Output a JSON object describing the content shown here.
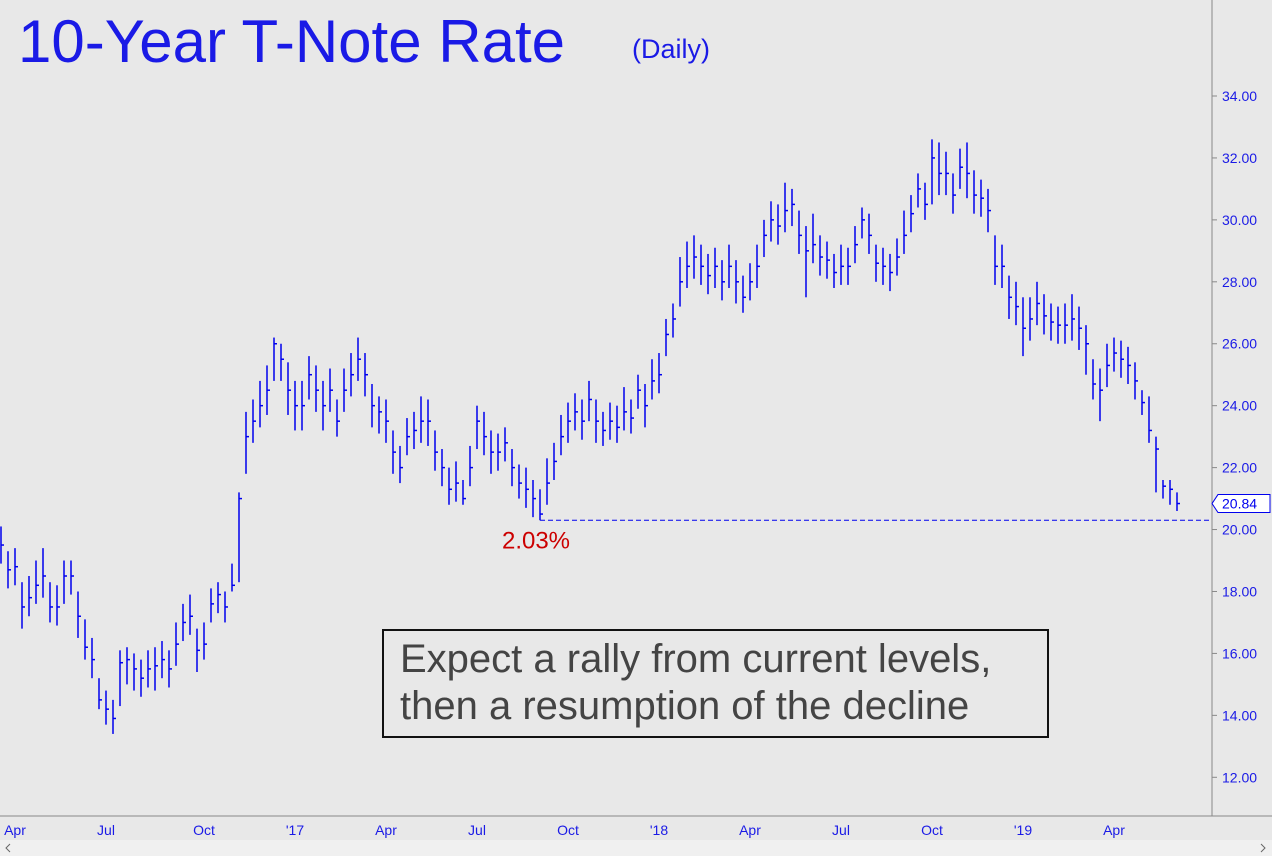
{
  "chart_data": {
    "type": "ohlc",
    "title": "10-Year T-Note Rate",
    "subtitle": "(Daily)",
    "color": "#0000ee",
    "categories": [
      null,
      null,
      "Apr",
      null,
      null,
      null,
      null,
      null,
      null,
      null,
      null,
      null,
      null,
      null,
      null,
      "Jul",
      null,
      null,
      null,
      null,
      null,
      null,
      null,
      null,
      null,
      null,
      null,
      null,
      null,
      "Oct",
      null,
      null,
      null,
      null,
      null,
      null,
      null,
      null,
      null,
      null,
      null,
      null,
      "'17",
      null,
      null,
      null,
      null,
      null,
      null,
      null,
      null,
      null,
      null,
      null,
      null,
      "Apr",
      null,
      null,
      null,
      null,
      null,
      null,
      null,
      null,
      null,
      null,
      null,
      null,
      "Jul",
      null,
      null,
      null,
      null,
      null,
      null,
      null,
      null,
      null,
      null,
      null,
      null,
      "Oct",
      null,
      null,
      null,
      null,
      null,
      null,
      null,
      null,
      null,
      null,
      null,
      null,
      "'18",
      null,
      null,
      null,
      null,
      null,
      null,
      null,
      null,
      null,
      null,
      null,
      null,
      "Apr",
      null,
      null,
      null,
      null,
      null,
      null,
      null,
      null,
      null,
      null,
      null,
      null,
      "Jul",
      null,
      null,
      null,
      null,
      null,
      null,
      null,
      null,
      null,
      null,
      null,
      null,
      "Oct",
      null,
      null,
      null,
      null,
      null,
      null,
      null,
      null,
      null,
      null,
      null,
      null,
      "'19",
      null,
      null,
      null,
      null,
      null,
      null,
      null,
      null,
      null,
      null,
      null,
      null,
      "Apr",
      null,
      null,
      null,
      null,
      null,
      null,
      null,
      null,
      null
    ],
    "high": [
      20.1,
      19.3,
      19.4,
      18.3,
      18.5,
      19,
      19.4,
      18.3,
      18.2,
      19,
      19,
      18,
      17.1,
      16.5,
      15.2,
      14.8,
      14.5,
      16.1,
      16.2,
      16,
      15.8,
      16.1,
      16.2,
      16.4,
      16.1,
      17,
      17.6,
      17.9,
      16.8,
      17,
      18.1,
      18.3,
      18,
      18.9,
      21.2,
      23.8,
      24.2,
      24.8,
      25.3,
      26.2,
      26,
      25.4,
      24.8,
      24.8,
      25.6,
      25.3,
      24.8,
      25.2,
      24.2,
      25.2,
      25.7,
      26.2,
      25.7,
      24.7,
      24.3,
      24.2,
      23.2,
      22.7,
      23.6,
      23.8,
      24.3,
      24.2,
      23.2,
      22.6,
      22,
      22.2,
      21.6,
      22.7,
      24,
      23.8,
      23.2,
      23.1,
      23.3,
      22.6,
      22.1,
      22,
      21.6,
      21.3,
      22.3,
      22.8,
      23.7,
      24.1,
      24.4,
      24.2,
      24.8,
      24.2,
      23.8,
      24.1,
      24,
      24.6,
      24.2,
      25,
      24.7,
      25.5,
      25.7,
      26.8,
      27.3,
      28.8,
      29.3,
      29.5,
      29.2,
      28.9,
      29.1,
      28.7,
      29.2,
      28.7,
      28.2,
      28.6,
      29.2,
      30,
      30.6,
      30.5,
      31.2,
      31,
      30.3,
      29.8,
      30.2,
      29.5,
      29.3,
      28.9,
      29.2,
      29.1,
      29.8,
      30.4,
      30.2,
      29.2,
      29.1,
      28.9,
      29.4,
      30.3,
      30.8,
      31.5,
      31.2,
      32.6,
      32.5,
      32.2,
      31.5,
      32.3,
      32.5,
      31.6,
      31.3,
      31,
      29.5,
      29.2,
      28.2,
      28,
      27.5,
      27.5,
      28,
      27.6,
      27.3,
      27.2,
      27.3,
      27.6,
      27.2,
      26.6,
      25.5,
      25.2,
      26,
      26.2,
      26.1,
      25.9,
      25.4,
      24.5,
      24.3,
      23,
      21.6,
      21.6,
      21.2
    ],
    "low": [
      18.9,
      18.1,
      18.2,
      16.8,
      17.2,
      17.6,
      17.8,
      17,
      16.9,
      17.6,
      17.9,
      16.5,
      15.8,
      15.2,
      14.2,
      13.7,
      13.4,
      14.3,
      15,
      14.8,
      14.6,
      14.9,
      14.8,
      15.2,
      14.9,
      15.6,
      16.4,
      16.6,
      15.4,
      15.8,
      17,
      17.3,
      17,
      18,
      18.3,
      21.8,
      22.8,
      23.3,
      23.7,
      24.8,
      24.8,
      23.7,
      23.2,
      23.2,
      24.2,
      23.8,
      23.2,
      23.8,
      23,
      23.8,
      24.3,
      24.8,
      24.3,
      23.3,
      23.1,
      22.8,
      21.8,
      21.5,
      22.4,
      22.6,
      22.8,
      22.7,
      21.9,
      21.4,
      20.8,
      20.9,
      20.8,
      21.4,
      22.6,
      22.4,
      21.8,
      21.9,
      22.2,
      21.4,
      21,
      20.7,
      20.4,
      20.3,
      20.8,
      21.6,
      22.4,
      22.8,
      23.2,
      22.9,
      23.5,
      22.8,
      22.7,
      22.9,
      22.8,
      23.2,
      23.1,
      23.9,
      23.3,
      24.2,
      24.4,
      25.6,
      26.2,
      27.2,
      27.8,
      28.1,
      27.9,
      27.6,
      27.8,
      27.4,
      27.8,
      27.3,
      27,
      27.4,
      27.8,
      28.8,
      29.3,
      29.2,
      29.6,
      29.8,
      28.9,
      27.5,
      28.6,
      28.2,
      28.1,
      27.8,
      27.9,
      27.9,
      28.6,
      29.4,
      28.9,
      28,
      27.9,
      27.7,
      28.2,
      28.9,
      29.6,
      30.4,
      30,
      30.5,
      30.8,
      30.8,
      30.2,
      31,
      30.7,
      30.2,
      30.1,
      29.6,
      27.9,
      27.8,
      26.8,
      26.6,
      25.6,
      26.1,
      26.6,
      26.3,
      26.1,
      26,
      26,
      26.1,
      25.8,
      25,
      24.2,
      23.5,
      24.6,
      25.1,
      24.9,
      24.7,
      24.2,
      23.7,
      22.8,
      21.2,
      21,
      20.8,
      20.6
    ],
    "close": [
      19.5,
      18.7,
      18.8,
      17.5,
      17.8,
      18.2,
      18.5,
      17.5,
      17.5,
      18.5,
      18.5,
      17.2,
      16.2,
      15.8,
      14.5,
      14.2,
      13.9,
      15.7,
      15.8,
      15.5,
      15.2,
      15.5,
      15.6,
      15.8,
      15.5,
      16.3,
      17,
      17.2,
      16.1,
      16.3,
      17.6,
      17.9,
      17.5,
      18.2,
      21,
      23,
      23.5,
      24,
      24.5,
      26,
      25.5,
      24.5,
      24,
      24,
      25,
      24.5,
      24,
      24.5,
      23.5,
      24.5,
      25,
      25.5,
      25,
      24,
      23.8,
      23.5,
      22.5,
      22,
      23,
      23.2,
      23.5,
      23.5,
      22.5,
      22,
      21.3,
      21.5,
      21,
      22,
      23.5,
      23,
      22.5,
      22.5,
      22.8,
      22,
      21.5,
      21.3,
      21,
      20.5,
      21.5,
      22.2,
      23,
      23.5,
      23.8,
      23.5,
      24.2,
      23.5,
      23.2,
      23.5,
      23.3,
      23.8,
      23.6,
      24.5,
      24,
      24.8,
      25,
      26.3,
      26.8,
      28,
      28.5,
      28.8,
      28.5,
      28.2,
      28.5,
      28,
      28.5,
      28,
      27.5,
      28,
      28.5,
      29.5,
      30,
      29.8,
      30.3,
      30.5,
      29.5,
      29,
      29.2,
      28.8,
      28.7,
      28.3,
      28.5,
      28.5,
      29.2,
      30,
      29.5,
      28.6,
      28.5,
      28.3,
      28.8,
      29.5,
      30.2,
      31,
      30.5,
      32,
      31.5,
      31.5,
      30.8,
      31.7,
      31.5,
      30.8,
      30.7,
      30.3,
      28.5,
      28.5,
      27.5,
      27.2,
      26.5,
      26.8,
      27.3,
      26.9,
      26.7,
      26.6,
      26.6,
      26.8,
      26.5,
      26,
      24.7,
      24.5,
      25.3,
      25.7,
      25.5,
      25.3,
      24.8,
      24.1,
      23.2,
      22.6,
      21.4,
      21.3,
      20.84
    ],
    "ylim": [
      10.75,
      37.1
    ],
    "yticks": [
      {
        "value": 12,
        "label": "12.00"
      },
      {
        "value": 14,
        "label": "14.00"
      },
      {
        "value": 16,
        "label": "16.00"
      },
      {
        "value": 18,
        "label": "18.00"
      },
      {
        "value": 20,
        "label": "20.00"
      },
      {
        "value": 22,
        "label": "22.00"
      },
      {
        "value": 24,
        "label": "24.00"
      },
      {
        "value": 26,
        "label": "26.00"
      },
      {
        "value": 28,
        "label": "28.00"
      },
      {
        "value": 30,
        "label": "30.00"
      },
      {
        "value": 32,
        "label": "32.00"
      },
      {
        "value": 34,
        "label": "34.00"
      }
    ],
    "support": {
      "value": 20.3,
      "label": "2.03%",
      "color": "#cc0000"
    },
    "annotation": [
      "Expect a rally from current levels,",
      "then a resumption of the decline"
    ]
  }
}
